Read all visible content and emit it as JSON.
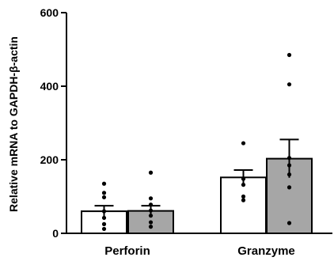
{
  "chart_data": {
    "type": "bar",
    "ylabel": "Relative mRNA to GAPDH-β-actin",
    "ylim": [
      0,
      600
    ],
    "y_ticks": [
      0,
      200,
      400,
      600
    ],
    "categories": [
      "Perforin",
      "Granzyme"
    ],
    "series": [
      {
        "fill": "#ffffff",
        "means": [
          60,
          152
        ],
        "sem": [
          15,
          20
        ],
        "points": [
          [
            135,
            110,
            98,
            60,
            42,
            25,
            12
          ],
          [
            245,
            148,
            132,
            100,
            90
          ]
        ]
      },
      {
        "fill": "#a6a6a6",
        "means": [
          61,
          203
        ],
        "sem": [
          14,
          52
        ],
        "points": [
          [
            165,
            95,
            78,
            62,
            48,
            30,
            18
          ],
          [
            485,
            405,
            205,
            185,
            160,
            125,
            28
          ]
        ]
      }
    ],
    "grid": false,
    "legend": "none"
  }
}
